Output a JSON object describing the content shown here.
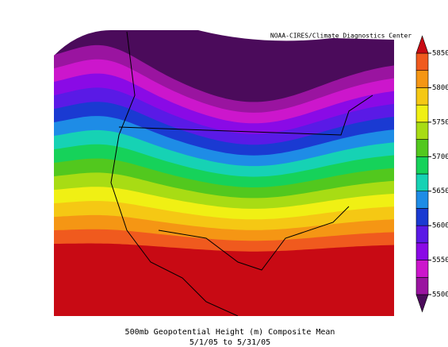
{
  "map": {
    "credit": "NOAA-CIRES/Climate Diagnostics Center",
    "title": "500mb Geopotential Height (m) Composite Mean",
    "subtitle": "5/1/05  to 5/31/05",
    "colorbar": {
      "levels": [
        5475,
        5500,
        5525,
        5550,
        5575,
        5600,
        5625,
        5650,
        5675,
        5700,
        5725,
        5750,
        5775,
        5800,
        5825,
        5850,
        5875
      ],
      "colors": [
        "#4b0b5b",
        "#9a14a0",
        "#cc16cc",
        "#8a0ae6",
        "#5a1ae6",
        "#1a3ad2",
        "#1e8ce6",
        "#16d2b4",
        "#16d25a",
        "#52c81e",
        "#a8dc14",
        "#f0f014",
        "#f5c814",
        "#f59614",
        "#f05a1e",
        "#c80a14"
      ],
      "ticks": [
        5500,
        5550,
        5600,
        5650,
        5700,
        5750,
        5800,
        5850
      ]
    }
  }
}
